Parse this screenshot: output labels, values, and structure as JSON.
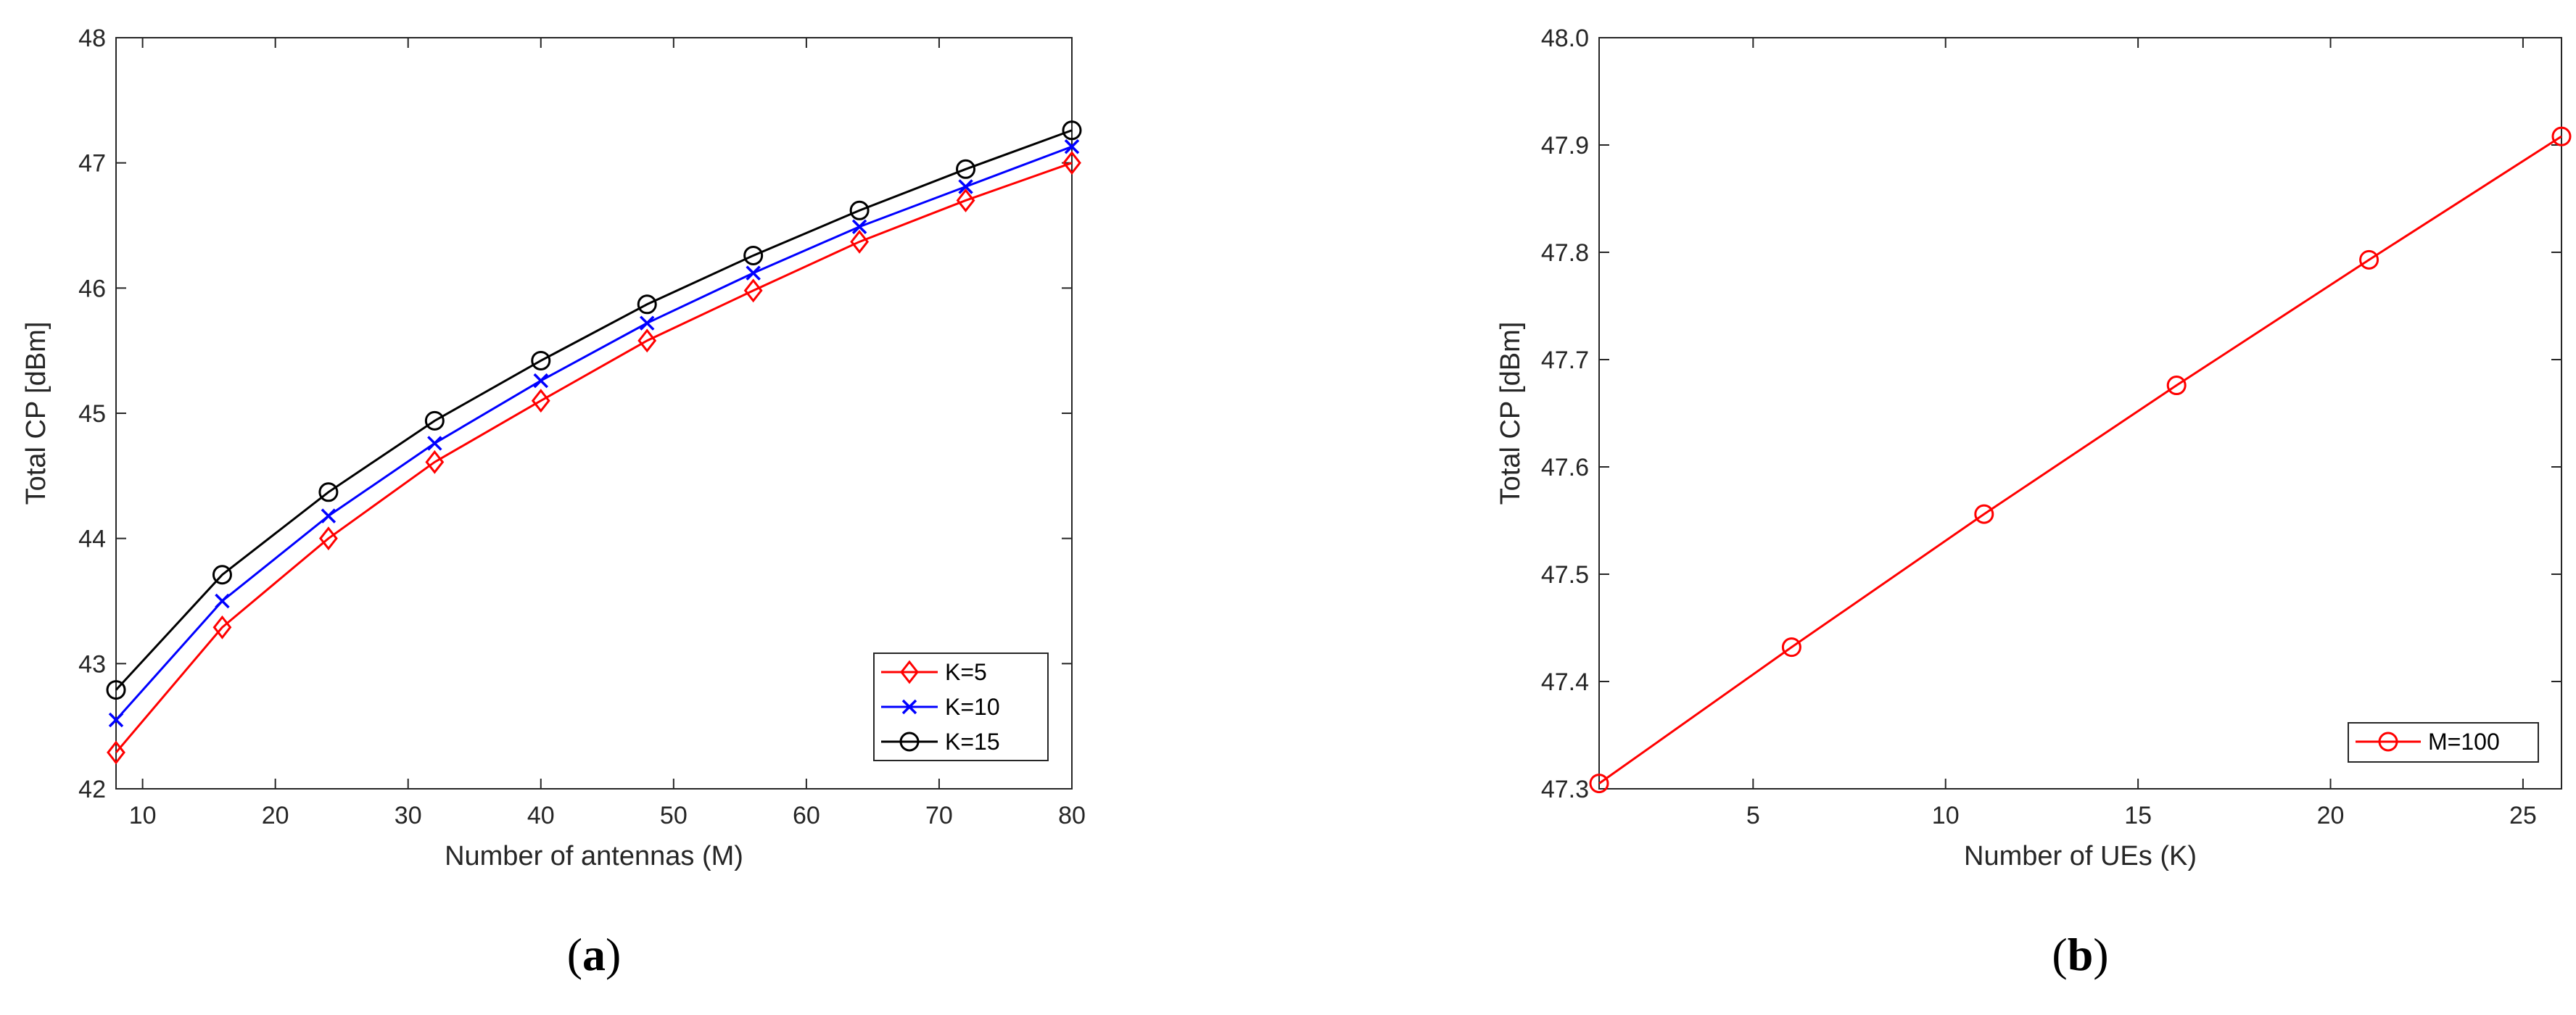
{
  "chart_data": [
    {
      "type": "line",
      "panel_label": {
        "open": "(",
        "letter": "a",
        "close": ")"
      },
      "xlabel": "Number of antennas (M)",
      "ylabel": "Total CP [dBm]",
      "xlim": [
        8,
        80
      ],
      "ylim": [
        42,
        48
      ],
      "xticks": [
        10,
        20,
        30,
        40,
        50,
        60,
        70,
        80
      ],
      "yticks": [
        42,
        43,
        44,
        45,
        46,
        47,
        48
      ],
      "grid": false,
      "legend_position": "bottom-right",
      "x": [
        8,
        16,
        24,
        32,
        40,
        48,
        56,
        64,
        72,
        80
      ],
      "series": [
        {
          "name": "K=5",
          "color": "#ff0000",
          "marker": "diamond",
          "values": [
            42.29,
            43.29,
            44.0,
            44.61,
            45.1,
            45.58,
            45.98,
            46.37,
            46.7,
            47.0
          ]
        },
        {
          "name": "K=10",
          "color": "#0000ff",
          "marker": "x",
          "values": [
            42.55,
            43.5,
            44.18,
            44.76,
            45.26,
            45.72,
            46.12,
            46.49,
            46.81,
            47.13
          ]
        },
        {
          "name": "K=15",
          "color": "#000000",
          "marker": "circle",
          "values": [
            42.79,
            43.71,
            44.37,
            44.94,
            45.42,
            45.87,
            46.26,
            46.62,
            46.95,
            47.26
          ]
        }
      ]
    },
    {
      "type": "line",
      "panel_label": {
        "open": "(",
        "letter": "b",
        "close": ")"
      },
      "xlabel": "Number of UEs (K)",
      "ylabel": "Total CP [dBm]",
      "xlim": [
        1,
        26
      ],
      "ylim": [
        47.3,
        48
      ],
      "xticks": [
        5,
        10,
        15,
        20,
        25
      ],
      "yticks": [
        47.3,
        47.4,
        47.5,
        47.6,
        47.7,
        47.8,
        47.9,
        48
      ],
      "grid": false,
      "legend_position": "bottom-right",
      "x": [
        1,
        6,
        11,
        16,
        21,
        26
      ],
      "series": [
        {
          "name": "M=100",
          "color": "#ff0000",
          "marker": "circle",
          "values": [
            47.305,
            47.432,
            47.556,
            47.676,
            47.793,
            47.908
          ]
        }
      ]
    }
  ]
}
